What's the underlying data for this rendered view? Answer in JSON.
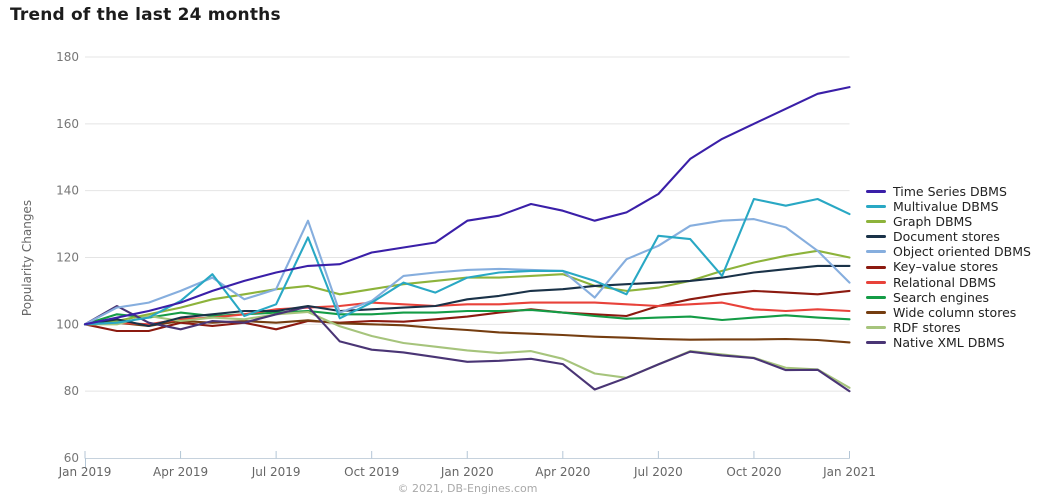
{
  "title": "Trend of the last 24 months",
  "footer": {
    "copyright": "© 2021, DB-Engines.com"
  },
  "chart_data": {
    "type": "line",
    "title": "Trend of the last 24 months",
    "xlabel": "",
    "ylabel": "Popularity Changes",
    "ylim": [
      60,
      180
    ],
    "ytick_interval": 20,
    "grid": true,
    "legend_position": "right",
    "x": [
      "Jan 2019",
      "Feb 2019",
      "Mar 2019",
      "Apr 2019",
      "May 2019",
      "Jun 2019",
      "Jul 2019",
      "Aug 2019",
      "Sep 2019",
      "Oct 2019",
      "Nov 2019",
      "Dec 2019",
      "Jan 2020",
      "Feb 2020",
      "Mar 2020",
      "Apr 2020",
      "May 2020",
      "Jun 2020",
      "Jul 2020",
      "Aug 2020",
      "Sep 2020",
      "Oct 2020",
      "Nov 2020",
      "Dec 2020",
      "Jan 2021"
    ],
    "x_tick_labels": [
      "Jan 2019",
      "Apr 2019",
      "Jul 2019",
      "Oct 2019",
      "Jan 2020",
      "Apr 2020",
      "Jul 2020",
      "Oct 2020",
      "Jan 2021"
    ],
    "series": [
      {
        "name": "Time Series DBMS",
        "color": "#3a1fa8",
        "values": [
          100,
          102,
          104,
          106.5,
          110,
          113,
          115.5,
          117.5,
          118,
          121.5,
          123,
          124.5,
          131,
          132.5,
          136,
          134,
          131,
          133.5,
          139,
          149.5,
          155.5,
          160,
          164.5,
          169,
          171
        ]
      },
      {
        "name": "Multivalue DBMS",
        "color": "#29a8c4",
        "values": [
          100,
          100.5,
          102,
          107,
          115,
          102.5,
          106,
          126,
          101.8,
          106.5,
          112.5,
          109.5,
          114,
          115.5,
          116,
          116,
          113,
          109,
          126.5,
          125.5,
          114.5,
          137.5,
          135.5,
          137.5,
          133
        ]
      },
      {
        "name": "Graph DBMS",
        "color": "#8db33b",
        "values": [
          100,
          101,
          103,
          105,
          107.5,
          109,
          110.5,
          111.5,
          109,
          110.5,
          112,
          113,
          114,
          114,
          114.5,
          115,
          111.5,
          110,
          111,
          113,
          116,
          118.5,
          120.5,
          122,
          120
        ]
      },
      {
        "name": "Document stores",
        "color": "#1a3248",
        "values": [
          100,
          101.5,
          99.5,
          102,
          103,
          104,
          104,
          105.5,
          104,
          104.5,
          105,
          105.5,
          107.5,
          108.5,
          110,
          110.5,
          111.5,
          112,
          112.5,
          113,
          114,
          115.5,
          116.5,
          117.5,
          117.5
        ]
      },
      {
        "name": "Object oriented DBMS",
        "color": "#86aede",
        "values": [
          100,
          105,
          106.5,
          110,
          114,
          107.5,
          110.5,
          131,
          103.5,
          107,
          114.5,
          115.5,
          116.3,
          116.6,
          116.3,
          116,
          108,
          119.5,
          123.5,
          129.5,
          131,
          131.5,
          129,
          122,
          112.5
        ]
      },
      {
        "name": "Key–value stores",
        "color": "#8c1a10",
        "values": [
          100,
          98,
          98,
          100.5,
          99.5,
          100.5,
          98.5,
          101,
          100.5,
          101,
          100.8,
          101.5,
          102.3,
          103.5,
          104.5,
          103.5,
          103,
          102.5,
          105.5,
          107.5,
          109,
          110,
          109.5,
          109,
          110
        ]
      },
      {
        "name": "Relational DBMS",
        "color": "#e8423a",
        "values": [
          100,
          100.5,
          100,
          101.5,
          102,
          103,
          104.5,
          105,
          105.5,
          106.5,
          106,
          105.5,
          106,
          106,
          106.5,
          106.5,
          106.5,
          106,
          105.5,
          106,
          106.5,
          104.5,
          104,
          104.5,
          104
        ]
      },
      {
        "name": "Search engines",
        "color": "#149c46",
        "values": [
          100,
          103,
          102,
          103.5,
          102.5,
          103,
          103.5,
          104,
          103,
          103,
          103.5,
          103.5,
          104,
          104,
          104.3,
          103.5,
          102.5,
          101.7,
          102,
          102.3,
          101.3,
          102,
          102.7,
          102,
          101.5
        ]
      },
      {
        "name": "Wide column stores",
        "color": "#753d10",
        "values": [
          100,
          100.5,
          99.5,
          101,
          100.5,
          101,
          100.5,
          101.2,
          100.3,
          100,
          99.7,
          98.9,
          98.3,
          97.6,
          97.2,
          96.8,
          96.3,
          96,
          95.6,
          95.4,
          95.5,
          95.5,
          95.6,
          95.3,
          94.6
        ]
      },
      {
        "name": "RDF stores",
        "color": "#a6c47c",
        "values": [
          100,
          100,
          102.5,
          101,
          102,
          101.5,
          103,
          103.7,
          99.4,
          96.5,
          94.4,
          93.3,
          92.2,
          91.4,
          92,
          89.7,
          85.3,
          84,
          88,
          92,
          91,
          90,
          87,
          86.5,
          81
        ]
      },
      {
        "name": "Native XML DBMS",
        "color": "#4a3575",
        "values": [
          100,
          105.5,
          100.5,
          98.5,
          101,
          100.5,
          103,
          105.3,
          94.9,
          92.4,
          91.6,
          90.2,
          88.8,
          89.1,
          89.7,
          88.1,
          80.5,
          84,
          88,
          91.8,
          90.7,
          89.9,
          86.3,
          86.4,
          80
        ]
      }
    ]
  }
}
